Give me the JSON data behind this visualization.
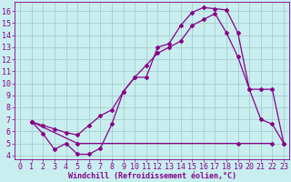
{
  "xlabel": "Windchill (Refroidissement éolien,°C)",
  "bg_color": "#c8eef0",
  "grid_color": "#aacccc",
  "line_color": "#880088",
  "xlim": [
    -0.5,
    23.5
  ],
  "ylim": [
    3.7,
    16.8
  ],
  "yticks": [
    4,
    5,
    6,
    7,
    8,
    9,
    10,
    11,
    12,
    13,
    14,
    15,
    16
  ],
  "xticks": [
    0,
    1,
    2,
    3,
    4,
    5,
    6,
    7,
    8,
    9,
    10,
    11,
    12,
    13,
    14,
    15,
    16,
    17,
    18,
    19,
    20,
    21,
    22,
    23
  ],
  "curve1_x": [
    1,
    2,
    3,
    4,
    5,
    6,
    7,
    8,
    9,
    10,
    11,
    12,
    13,
    14,
    15,
    16,
    17,
    18,
    19,
    20,
    21,
    22,
    23
  ],
  "curve1_y": [
    6.8,
    5.8,
    4.5,
    5.0,
    4.1,
    4.1,
    4.6,
    6.6,
    9.3,
    10.5,
    10.5,
    13.0,
    13.3,
    14.8,
    15.9,
    16.3,
    16.2,
    16.1,
    14.2,
    9.5,
    7.0,
    6.6,
    5.0
  ],
  "curve2_x": [
    1,
    2,
    3,
    4,
    5,
    6,
    7,
    8,
    9,
    10,
    11,
    12,
    13,
    14,
    15,
    16,
    17,
    18,
    19,
    20,
    21,
    22,
    23
  ],
  "curve2_y": [
    6.8,
    6.5,
    6.2,
    5.9,
    5.7,
    6.5,
    7.3,
    7.8,
    9.3,
    10.5,
    11.5,
    12.5,
    13.0,
    13.5,
    14.8,
    15.3,
    15.8,
    14.2,
    12.2,
    9.5,
    9.5,
    9.5,
    5.0
  ],
  "curve3_x": [
    1,
    5,
    19,
    22
  ],
  "curve3_y": [
    6.8,
    5.0,
    5.0,
    5.0
  ],
  "marker": "D",
  "marker_size": 2,
  "lw": 0.9,
  "font_size_xlabel": 6,
  "font_size_ticks": 6,
  "xlabel_weight": "bold"
}
